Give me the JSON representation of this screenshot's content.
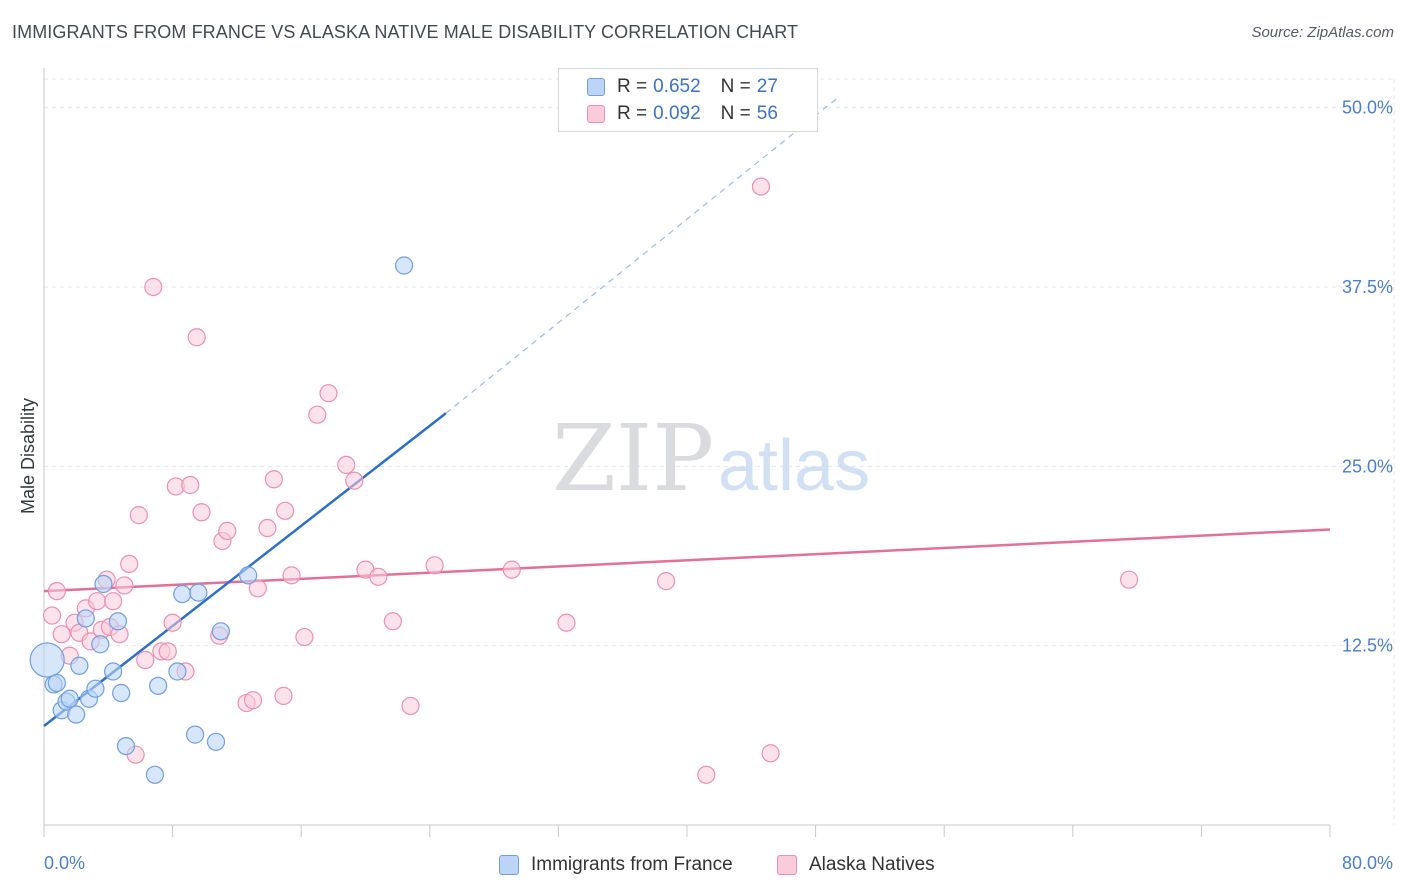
{
  "title": "IMMIGRANTS FROM FRANCE VS ALASKA NATIVE MALE DISABILITY CORRELATION CHART",
  "source": "Source: ZipAtlas.com",
  "watermark": {
    "zip": "ZIP",
    "atlas": "atlas"
  },
  "legend": {
    "series1": {
      "r_label": "R =",
      "r_value": "0.652",
      "n_label": "N =",
      "n_value": "27"
    },
    "series2": {
      "r_label": "R =",
      "r_value": "0.092",
      "n_label": "N =",
      "n_value": "56"
    }
  },
  "chart_data": {
    "type": "scatter",
    "title": "IMMIGRANTS FROM FRANCE VS ALASKA NATIVE MALE DISABILITY CORRELATION CHART",
    "xlabel": "",
    "ylabel": "Male Disability",
    "xlim": [
      0,
      80
    ],
    "ylim": [
      0,
      52
    ],
    "x_tick_labels": [
      "0.0%",
      "80.0%"
    ],
    "y_ticks": [
      12.5,
      25.0,
      37.5,
      50.0
    ],
    "y_tick_labels": [
      "12.5%",
      "25.0%",
      "37.5%",
      "50.0%"
    ],
    "grid": true,
    "colors": {
      "france": "#6f9fe0",
      "france_fill": "#bcd5f7",
      "france_line": "#2d6fcc",
      "alaska": "#ef8fae",
      "alaska_fill": "#f9cbdb",
      "alaska_line": "#e4709a"
    },
    "series": [
      {
        "name": "Immigrants from France",
        "points": [
          [
            0.2,
            11.5
          ],
          [
            0.6,
            9.8
          ],
          [
            0.8,
            9.9
          ],
          [
            1.1,
            8.0
          ],
          [
            1.4,
            8.6
          ],
          [
            1.6,
            8.8
          ],
          [
            2.0,
            7.7
          ],
          [
            2.2,
            11.1
          ],
          [
            2.6,
            14.4
          ],
          [
            2.8,
            8.8
          ],
          [
            3.2,
            9.5
          ],
          [
            3.5,
            12.6
          ],
          [
            3.7,
            16.8
          ],
          [
            4.3,
            10.7
          ],
          [
            4.6,
            14.2
          ],
          [
            4.8,
            9.2
          ],
          [
            5.1,
            5.5
          ],
          [
            6.9,
            3.5
          ],
          [
            7.1,
            9.7
          ],
          [
            8.3,
            10.7
          ],
          [
            8.6,
            16.1
          ],
          [
            9.4,
            6.3
          ],
          [
            9.6,
            16.2
          ],
          [
            10.7,
            5.8
          ],
          [
            11.0,
            13.5
          ],
          [
            12.7,
            17.4
          ],
          [
            22.4,
            39.0
          ]
        ],
        "trend": {
          "x0": 0,
          "y0": 6.9,
          "x1": 25,
          "y1": 28.7,
          "dash_to_x": 49.5,
          "dash_to_y": 50.8
        }
      },
      {
        "name": "Alaska Natives",
        "points": [
          [
            0.5,
            14.6
          ],
          [
            0.8,
            16.3
          ],
          [
            1.1,
            13.3
          ],
          [
            1.6,
            11.8
          ],
          [
            1.9,
            14.1
          ],
          [
            2.2,
            13.4
          ],
          [
            2.6,
            15.1
          ],
          [
            2.9,
            12.8
          ],
          [
            3.3,
            15.6
          ],
          [
            3.6,
            13.6
          ],
          [
            3.9,
            17.1
          ],
          [
            4.1,
            13.8
          ],
          [
            4.3,
            15.6
          ],
          [
            4.7,
            13.3
          ],
          [
            5.0,
            16.7
          ],
          [
            5.3,
            18.2
          ],
          [
            5.7,
            4.9
          ],
          [
            5.9,
            21.6
          ],
          [
            6.3,
            11.5
          ],
          [
            6.8,
            37.5
          ],
          [
            7.3,
            12.1
          ],
          [
            7.7,
            12.1
          ],
          [
            8.0,
            14.1
          ],
          [
            8.2,
            23.6
          ],
          [
            8.8,
            10.7
          ],
          [
            9.1,
            23.7
          ],
          [
            9.5,
            34.0
          ],
          [
            9.8,
            21.8
          ],
          [
            10.9,
            13.2
          ],
          [
            11.1,
            19.8
          ],
          [
            11.4,
            20.5
          ],
          [
            12.6,
            8.5
          ],
          [
            13.0,
            8.7
          ],
          [
            13.3,
            16.5
          ],
          [
            13.9,
            20.7
          ],
          [
            14.3,
            24.1
          ],
          [
            14.9,
            9.0
          ],
          [
            15.0,
            21.9
          ],
          [
            15.4,
            17.4
          ],
          [
            16.2,
            13.1
          ],
          [
            17.0,
            28.6
          ],
          [
            17.7,
            30.1
          ],
          [
            18.8,
            25.1
          ],
          [
            19.3,
            24.0
          ],
          [
            20.0,
            17.8
          ],
          [
            20.8,
            17.3
          ],
          [
            21.7,
            14.2
          ],
          [
            22.8,
            8.3
          ],
          [
            24.3,
            18.1
          ],
          [
            29.1,
            17.8
          ],
          [
            32.5,
            14.1
          ],
          [
            41.2,
            3.5
          ],
          [
            44.6,
            44.5
          ],
          [
            45.2,
            5.0
          ],
          [
            38.7,
            17.0
          ],
          [
            67.5,
            17.1
          ]
        ],
        "trend": {
          "x0": 0,
          "y0": 16.3,
          "x1": 80,
          "y1": 20.6
        }
      }
    ]
  }
}
